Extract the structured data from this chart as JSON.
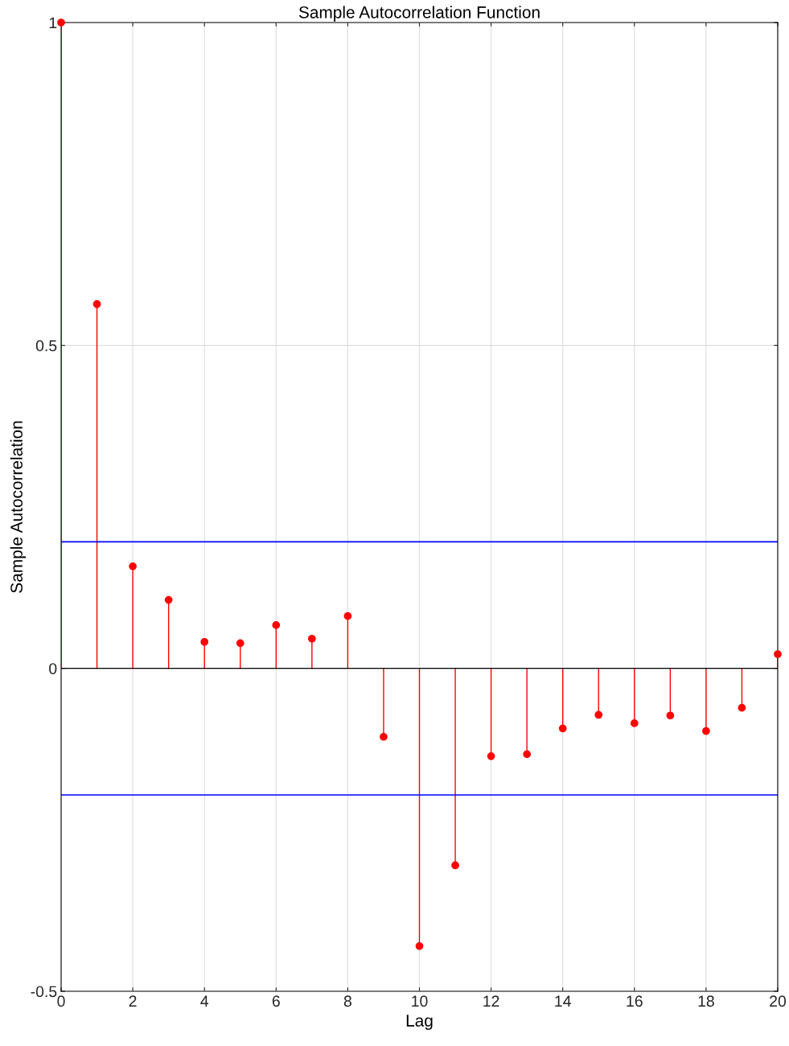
{
  "chart_data": {
    "type": "lollipop",
    "title": "Sample Autocorrelation Function",
    "xlabel": "Lag",
    "ylabel": "Sample Autocorrelation",
    "x": [
      0,
      1,
      2,
      3,
      4,
      5,
      6,
      7,
      8,
      9,
      10,
      11,
      12,
      13,
      14,
      15,
      16,
      17,
      18,
      19,
      20
    ],
    "series": [
      {
        "type": "lollipop",
        "color": "#ff0000",
        "values": [
          1,
          0.564,
          0.158,
          0.106,
          0.041,
          0.039,
          0.067,
          0.046,
          0.081,
          -0.106,
          -0.43,
          -0.305,
          -0.136,
          -0.133,
          -0.093,
          -0.072,
          -0.085,
          -0.073,
          -0.097,
          -0.061,
          0.022
        ]
      }
    ],
    "ref_lines": [
      {
        "axis": "y",
        "value": 0.196,
        "color": "#0000ff"
      },
      {
        "axis": "y",
        "value": -0.196,
        "color": "#0000ff"
      }
    ],
    "xlim": [
      0,
      20
    ],
    "xticks": [
      0,
      2,
      4,
      6,
      8,
      10,
      12,
      14,
      16,
      18,
      20
    ],
    "ylim": [
      -0.5,
      1
    ],
    "yticks": [
      -0.5,
      0,
      0.5,
      1
    ],
    "grid": true,
    "marker": "circle",
    "line_style": "solid"
  }
}
